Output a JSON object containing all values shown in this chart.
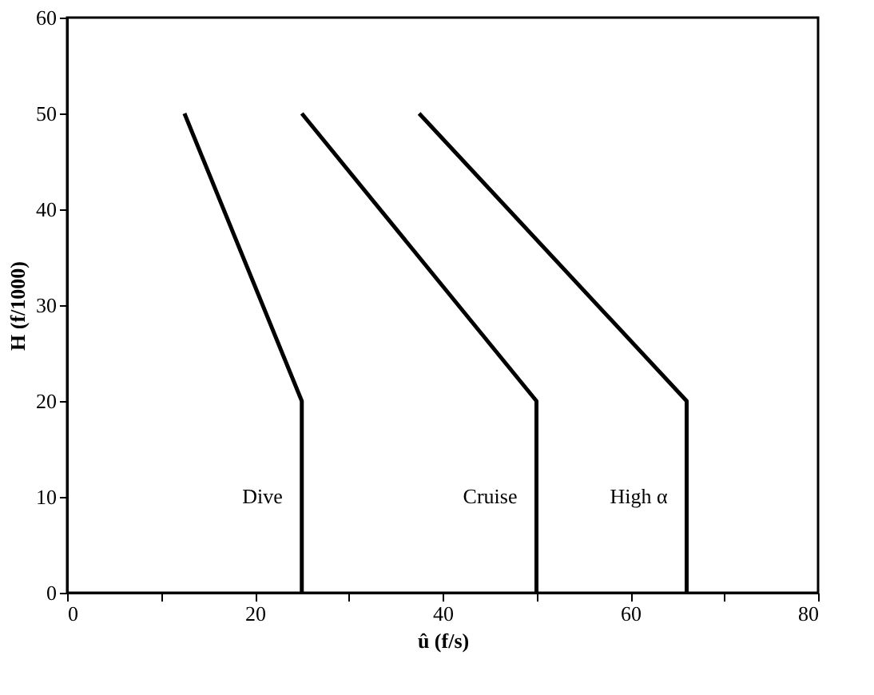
{
  "chart_data": {
    "type": "line",
    "xlabel": "û (f/s)",
    "ylabel": "H (f/1000)",
    "series": [
      {
        "name": "Dive",
        "color": "#000000",
        "x": [
          12.5,
          25,
          25
        ],
        "values": [
          50,
          20,
          0
        ]
      },
      {
        "name": "Cruise",
        "color": "#000000",
        "x": [
          25,
          50,
          50
        ],
        "values": [
          50,
          20,
          0
        ]
      },
      {
        "name": "High α",
        "color": "#000000",
        "x": [
          37.5,
          66,
          66
        ],
        "values": [
          50,
          20,
          0
        ]
      }
    ],
    "xlim": [
      0,
      80
    ],
    "ylim": [
      0,
      60
    ],
    "xticks": [
      0,
      {
        "value": 10,
        "label": null
      },
      20,
      {
        "value": 30,
        "label": null
      },
      40,
      {
        "value": 50,
        "label": null
      },
      60,
      {
        "value": 70,
        "label": null
      },
      80
    ],
    "yticks": [
      0,
      10,
      20,
      30,
      40,
      50,
      60
    ],
    "grid": false,
    "legend": false,
    "marker": "none",
    "line_style": "solid"
  }
}
